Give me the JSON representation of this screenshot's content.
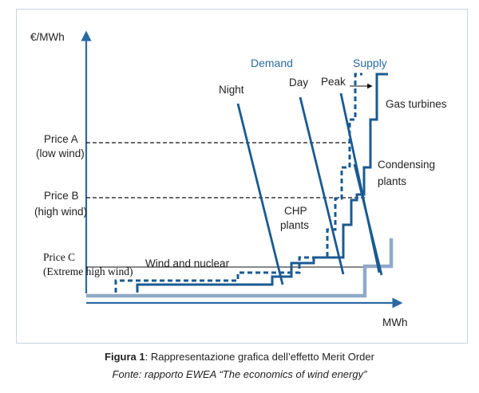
{
  "diagram": {
    "y_axis_label": "€/MWh",
    "x_axis_label": "MWh",
    "demand_label": "Demand",
    "supply_label": "Supply",
    "curve_labels": {
      "night": "Night",
      "day": "Day",
      "peak": "Peak"
    },
    "price_labels": {
      "a_line1": "Price A",
      "a_line2": "(low wind)",
      "b_line1": "Price B",
      "b_line2": "(high wind)",
      "c_line1": "Price C",
      "c_line2": "(Extreme high wind)"
    },
    "plant_labels": {
      "gas": "Gas turbines",
      "condensing_line1": "Condensing",
      "condensing_line2": "plants",
      "chp_line1": "CHP",
      "chp_line2": "plants",
      "wind_nuclear": "Wind and nuclear"
    },
    "colors": {
      "dark_blue": "#1a5a92",
      "light_blue": "#8fa9c8",
      "axis": "#2a6aa3",
      "frame": "#c9d3de"
    }
  },
  "caption": {
    "line1_bold": "Figura 1",
    "line1_rest": ": Rappresentazione grafica dell’effetto Merit Order",
    "line2": "Fonte: rapporto EWEA “The economics of wind energy”"
  }
}
